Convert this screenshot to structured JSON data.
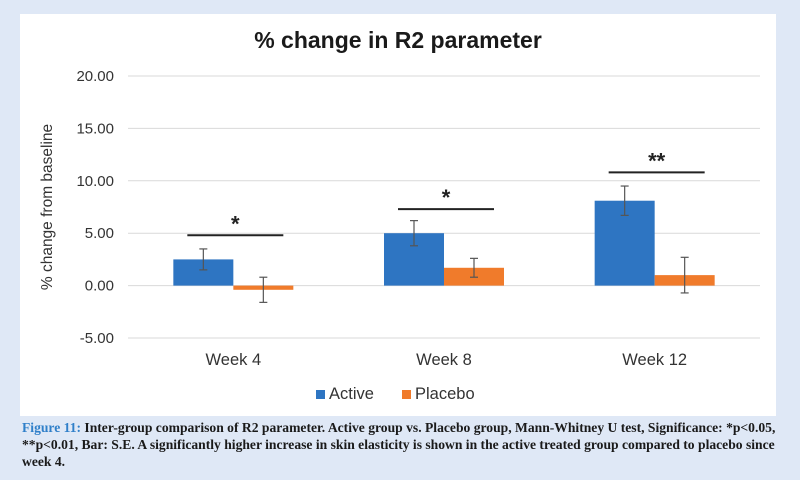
{
  "chart_data": {
    "type": "bar",
    "title": "% change in R2 parameter",
    "ylabel": "% change from baseline",
    "xlabel": "",
    "categories": [
      "Week 4",
      "Week 8",
      "Week 12"
    ],
    "ylim": [
      -5,
      20
    ],
    "yticks": [
      -5,
      0,
      5,
      10,
      15,
      20
    ],
    "ytick_labels": [
      "-5.00",
      "0.00",
      "5.00",
      "10.00",
      "15.00",
      "20.00"
    ],
    "grid": "horizontal",
    "legend": "bottom",
    "series": [
      {
        "name": "Active",
        "color": "#2e75c2",
        "values": [
          2.5,
          5.0,
          8.1
        ],
        "errors": [
          1.0,
          1.2,
          1.4
        ]
      },
      {
        "name": "Placebo",
        "color": "#f07b2b",
        "values": [
          -0.4,
          1.7,
          1.0
        ],
        "errors": [
          1.2,
          0.9,
          1.7
        ]
      }
    ],
    "significance": [
      {
        "label": "*",
        "line_y": 4.8
      },
      {
        "label": "*",
        "line_y": 7.3
      },
      {
        "label": "**",
        "line_y": 10.8
      }
    ]
  },
  "caption": {
    "label": "Figure 11:",
    "text": " Inter-group comparison of R2 parameter. Active group vs. Placebo group, Mann-Whitney U test, Significance: *p<0.05, **p<0.01, Bar: S.E. A significantly higher increase in skin elasticity is shown in the active treated group compared to placebo since week 4."
  }
}
